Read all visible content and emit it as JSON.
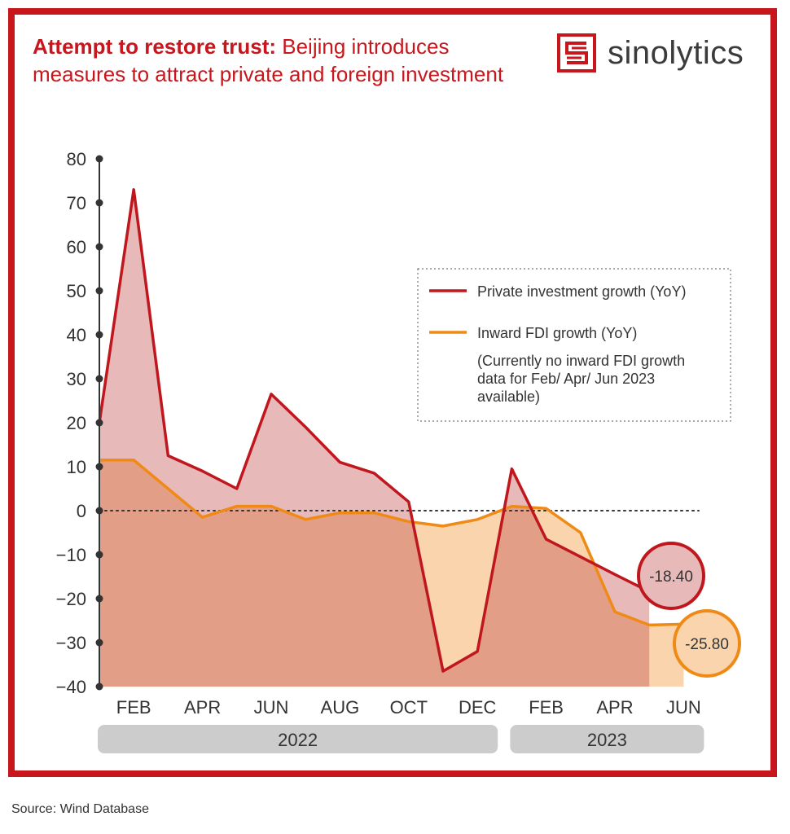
{
  "header": {
    "title_bold": "Attempt to restore trust:",
    "title_rest": " Beijing introduces measures to attract private and foreign investment",
    "brand_name": "sinolytics"
  },
  "footer": {
    "source": "Source: Wind Database"
  },
  "colors": {
    "frame": "#c8161d",
    "private": "#c0171e",
    "fdi": "#f08a16",
    "private_fill": "#e8b9b9",
    "fdi_fill": "#f9d4ad",
    "overlap_fill": "#e39e88",
    "end_bubble_private": "#e8b9b9",
    "end_bubble_fdi": "#f9d4ad"
  },
  "chart_data": {
    "type": "area",
    "title": "Attempt to restore trust: Beijing introduces measures to attract private and foreign investment",
    "x": [
      "2022-01",
      "2022-02",
      "2022-03",
      "2022-04",
      "2022-05",
      "2022-06",
      "2022-07",
      "2022-08",
      "2022-09",
      "2022-10",
      "2022-11",
      "2022-12",
      "2023-01",
      "2023-02",
      "2023-03",
      "2023-04",
      "2023-05",
      "2023-06"
    ],
    "x_tick_labels": [
      "FEB",
      "APR",
      "JUN",
      "AUG",
      "OCT",
      "DEC",
      "FEB",
      "APR",
      "JUN"
    ],
    "x_ticks": [
      "2022-02",
      "2022-04",
      "2022-06",
      "2022-08",
      "2022-10",
      "2022-12",
      "2023-02",
      "2023-04",
      "2023-06"
    ],
    "year_groups": [
      {
        "label": "2022",
        "from": "2022-01",
        "to": "2022-12"
      },
      {
        "label": "2023",
        "from": "2023-01",
        "to": "2023-06"
      }
    ],
    "ylim": [
      -40,
      80
    ],
    "yticks": [
      80,
      70,
      60,
      50,
      40,
      30,
      20,
      10,
      0,
      -10,
      -20,
      -30,
      -40
    ],
    "series": [
      {
        "name": "Private investment growth (YoY)",
        "x": [
          "2022-01",
          "2022-02",
          "2022-03",
          "2022-04",
          "2022-05",
          "2022-06",
          "2022-07",
          "2022-08",
          "2022-09",
          "2022-10",
          "2022-11",
          "2022-12",
          "2023-01",
          "2023-02",
          "2023-03",
          "2023-04",
          "2023-05"
        ],
        "values": [
          20,
          73,
          12.5,
          9,
          5,
          26.5,
          19,
          11,
          8.5,
          2,
          -36.5,
          -32,
          9.5,
          -6.5,
          -10.5,
          -14.5,
          -18.4
        ]
      },
      {
        "name": "Inward FDI growth (YoY)",
        "x": [
          "2022-01",
          "2022-02",
          "2022-03",
          "2022-04",
          "2022-05",
          "2022-06",
          "2022-07",
          "2022-08",
          "2022-09",
          "2022-10",
          "2022-11",
          "2022-12",
          "2023-01",
          "2023-02",
          "2023-03",
          "2023-04",
          "2023-05",
          "2023-06"
        ],
        "values": [
          11.5,
          11.5,
          5,
          -1.5,
          1,
          1,
          -2,
          -0.5,
          -0.5,
          -2.5,
          -3.5,
          -2,
          1,
          0.5,
          -5,
          -23,
          -26,
          -25.8
        ]
      }
    ],
    "legend": {
      "position": "top-right",
      "note": "(Currently no inward FDI growth data for Feb/ Apr/ Jun 2023 available)"
    },
    "end_labels": [
      {
        "series": "Private investment growth (YoY)",
        "text": "-18.40"
      },
      {
        "series": "Inward FDI growth (YoY)",
        "text": "-25.80"
      }
    ],
    "zero_line": "dotted"
  }
}
